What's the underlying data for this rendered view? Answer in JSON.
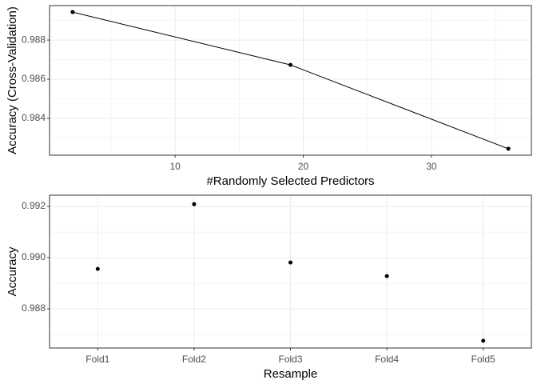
{
  "chart_data": [
    {
      "type": "line",
      "x_label": "#Randomly Selected Predictors",
      "y_label": "Accuracy (Cross-Validation)",
      "x": [
        2,
        19,
        36
      ],
      "values": [
        0.98943,
        0.98673,
        0.98245
      ],
      "color": "#000000",
      "xlim": [
        0.2,
        37.8
      ],
      "xticks": [
        10,
        20,
        30
      ],
      "ylim": [
        0.98212,
        0.98976
      ],
      "yticks": [
        0.984,
        0.986,
        0.988
      ],
      "grid": true
    },
    {
      "type": "scatter",
      "x_label": "Resample",
      "y_label": "Accuracy",
      "categories": [
        "Fold1",
        "Fold2",
        "Fold3",
        "Fold4",
        "Fold5"
      ],
      "values": [
        0.98956,
        0.99209,
        0.98981,
        0.98928,
        0.98675
      ],
      "color": "#000000",
      "ylim": [
        0.98647,
        0.99244
      ],
      "yticks": [
        0.988,
        {
          "value": 0.99,
          "label": "0.990"
        },
        0.992
      ],
      "grid": true
    }
  ]
}
